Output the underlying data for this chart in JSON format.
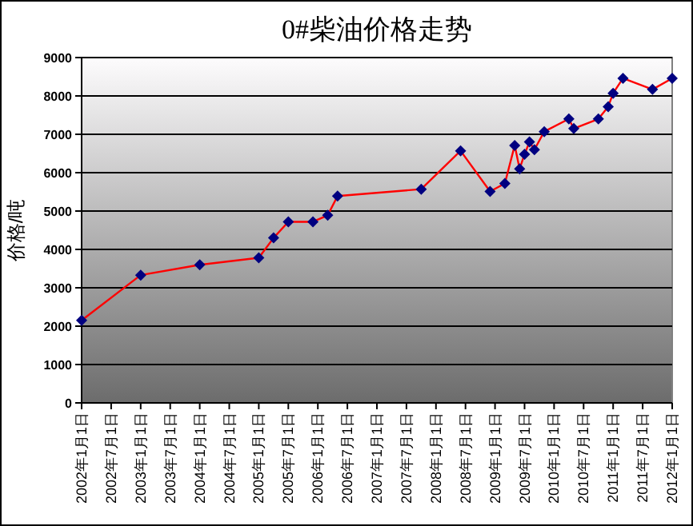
{
  "chart_data": {
    "type": "line",
    "title": "0#柴油价格走势",
    "ylabel": "价格/吨",
    "x": [
      "2002-01",
      "2003-01",
      "2004-01",
      "2005-01",
      "2005-04",
      "2005-07",
      "2005-12",
      "2006-03",
      "2006-05",
      "2007-10",
      "2008-06",
      "2008-12",
      "2009-03",
      "2009-05",
      "2009-06",
      "2009-07",
      "2009-08",
      "2009-09",
      "2009-11",
      "2010-04",
      "2010-05",
      "2010-10",
      "2010-12",
      "2011-01",
      "2011-03",
      "2011-09",
      "2012-01"
    ],
    "series": [
      {
        "color": "#ff0000",
        "values": [
          2150,
          3330,
          3600,
          3780,
          4300,
          4720,
          4720,
          4890,
          5390,
          5570,
          6570,
          5510,
          5720,
          6710,
          6100,
          6480,
          6800,
          6600,
          7070,
          7400,
          7150,
          7400,
          7720,
          8070,
          8460,
          8170,
          8460
        ]
      }
    ],
    "marker": "diamond",
    "line_style": "solid",
    "grid": "y",
    "ylim": [
      0,
      9000
    ],
    "yticks": [
      0,
      1000,
      2000,
      3000,
      4000,
      5000,
      6000,
      7000,
      8000,
      9000
    ],
    "xlim": [
      "2002-01-01",
      "2012-01-01"
    ],
    "xticks": [
      {
        "value": "2002-01-01",
        "label": "2002年1月1日"
      },
      {
        "value": "2002-07-01",
        "label": "2002年7月1日"
      },
      {
        "value": "2003-01-01",
        "label": "2003年1月1日"
      },
      {
        "value": "2003-07-01",
        "label": "2003年7月1日"
      },
      {
        "value": "2004-01-01",
        "label": "2004年1月1日"
      },
      {
        "value": "2004-07-01",
        "label": "2004年7月1日"
      },
      {
        "value": "2005-01-01",
        "label": "2005年1月1日"
      },
      {
        "value": "2005-07-01",
        "label": "2005年7月1日"
      },
      {
        "value": "2006-01-01",
        "label": "2006年1月1日"
      },
      {
        "value": "2006-07-01",
        "label": "2006年7月1日"
      },
      {
        "value": "2007-01-01",
        "label": "2007年1月1日"
      },
      {
        "value": "2007-07-01",
        "label": "2007年7月1日"
      },
      {
        "value": "2008-01-01",
        "label": "2008年1月1日"
      },
      {
        "value": "2008-07-01",
        "label": "2008年7月1日"
      },
      {
        "value": "2009-01-01",
        "label": "2009年1月1日"
      },
      {
        "value": "2009-07-01",
        "label": "2009年7月1日"
      },
      {
        "value": "2010-01-01",
        "label": "2010年1月1日"
      },
      {
        "value": "2010-07-01",
        "label": "2010年7月1日"
      },
      {
        "value": "2011-01-01",
        "label": "2011年1月1日"
      },
      {
        "value": "2011-07-01",
        "label": "2011年7月1日"
      },
      {
        "value": "2012-01-01",
        "label": "2012年1月1日"
      }
    ]
  }
}
